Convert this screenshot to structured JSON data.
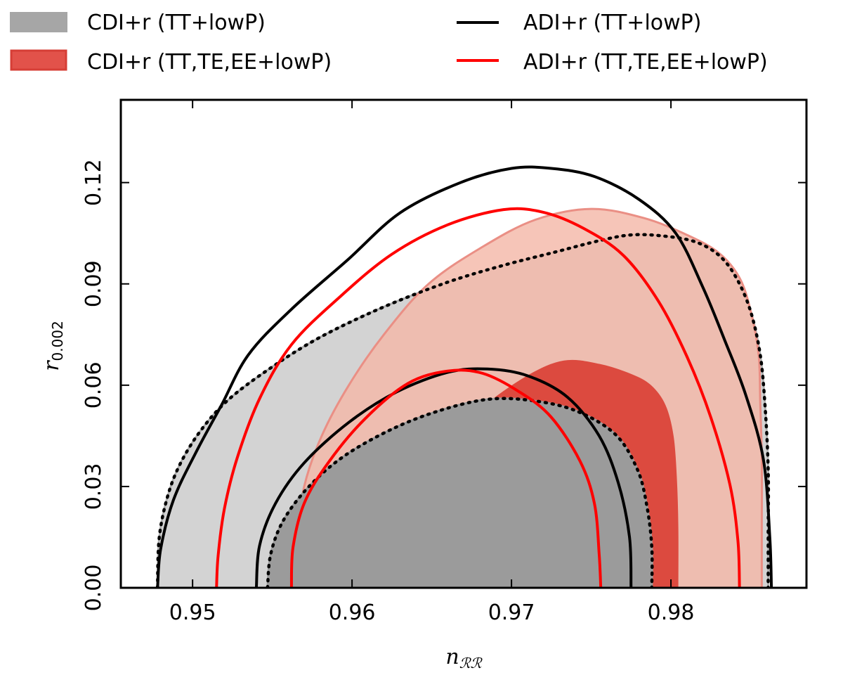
{
  "chart_data": {
    "type": "contour",
    "title": "",
    "xlabel": "n",
    "xlabel_sub": "ℛℛ",
    "ylabel": "r",
    "ylabel_sub": "0.002",
    "xlim": [
      0.9455,
      0.9885
    ],
    "ylim": [
      0.0,
      0.1445
    ],
    "xticks": [
      0.95,
      0.96,
      0.97,
      0.98
    ],
    "xtick_labels": [
      "0.95",
      "0.96",
      "0.97",
      "0.98"
    ],
    "yticks": [
      0.0,
      0.03,
      0.06,
      0.09,
      0.12
    ],
    "ytick_labels": [
      "0.00",
      "0.03",
      "0.06",
      "0.09",
      "0.12"
    ],
    "legend_position": "top, above plot",
    "legend": [
      {
        "label": "CDI+r (TT+lowP)",
        "kind": "patch",
        "color": "#a6a6a6",
        "edge": "#a6a6a6"
      },
      {
        "label": "CDI+r (TT,TE,EE+lowP)",
        "kind": "patch",
        "color": "#e2524a",
        "edge": "#d63e36"
      },
      {
        "label": "ADI+r (TT+lowP)",
        "kind": "line",
        "color": "#000000"
      },
      {
        "label": "ADI+r (TT,TE,EE+lowP)",
        "kind": "line",
        "color": "#ff0000"
      }
    ],
    "series": [
      {
        "name": "CDI+r (TT+lowP) 95%",
        "style": "fill",
        "color": "#d3d3d3",
        "edge": "#b0b0b0",
        "outline": "dotted-black",
        "points": [
          [
            0.9478,
            0.0
          ],
          [
            0.9479,
            0.0145
          ],
          [
            0.9484,
            0.0265
          ],
          [
            0.9492,
            0.0365
          ],
          [
            0.9505,
            0.0465
          ],
          [
            0.9522,
            0.0555
          ],
          [
            0.9548,
            0.0648
          ],
          [
            0.958,
            0.0742
          ],
          [
            0.962,
            0.0832
          ],
          [
            0.966,
            0.0905
          ],
          [
            0.9695,
            0.0955
          ],
          [
            0.9728,
            0.0995
          ],
          [
            0.9755,
            0.1028
          ],
          [
            0.9775,
            0.1045
          ],
          [
            0.9795,
            0.1042
          ],
          [
            0.9815,
            0.1025
          ],
          [
            0.983,
            0.0985
          ],
          [
            0.9841,
            0.0918
          ],
          [
            0.985,
            0.0818
          ],
          [
            0.9856,
            0.069
          ],
          [
            0.9859,
            0.054
          ],
          [
            0.9861,
            0.035
          ],
          [
            0.9861,
            0.0155
          ],
          [
            0.9861,
            0.0
          ]
        ]
      },
      {
        "name": "CDI+r (TT,TE,EE+lowP) 95%",
        "style": "fill",
        "color": "#f4b8a8",
        "edge": "#ea8f85",
        "opacity": 0.82,
        "points": [
          [
            0.9565,
            0.0
          ],
          [
            0.9566,
            0.015
          ],
          [
            0.957,
            0.03
          ],
          [
            0.9581,
            0.045
          ],
          [
            0.9598,
            0.06
          ],
          [
            0.962,
            0.075
          ],
          [
            0.9648,
            0.09
          ],
          [
            0.9682,
            0.101
          ],
          [
            0.9715,
            0.109
          ],
          [
            0.975,
            0.1122
          ],
          [
            0.9783,
            0.1095
          ],
          [
            0.981,
            0.1045
          ],
          [
            0.983,
            0.0992
          ],
          [
            0.9843,
            0.0918
          ],
          [
            0.985,
            0.082
          ],
          [
            0.9855,
            0.069
          ],
          [
            0.9856,
            0.055
          ],
          [
            0.9857,
            0.038
          ],
          [
            0.9857,
            0.018
          ],
          [
            0.9857,
            0.0
          ]
        ]
      },
      {
        "name": "CDI+r (TT,TE,EE+lowP) 68%",
        "style": "fill",
        "color": "#dc4a3f",
        "edge": "#dc4a3f",
        "points": [
          [
            0.9623,
            0.0
          ],
          [
            0.9623,
            0.012
          ],
          [
            0.9626,
            0.022
          ],
          [
            0.9637,
            0.032
          ],
          [
            0.9655,
            0.041
          ],
          [
            0.968,
            0.0525
          ],
          [
            0.971,
            0.0625
          ],
          [
            0.9733,
            0.067
          ],
          [
            0.9755,
            0.066
          ],
          [
            0.9775,
            0.063
          ],
          [
            0.9787,
            0.0598
          ],
          [
            0.9796,
            0.054
          ],
          [
            0.9801,
            0.045
          ],
          [
            0.9803,
            0.033
          ],
          [
            0.9804,
            0.018
          ],
          [
            0.9804,
            0.0
          ]
        ]
      },
      {
        "name": "CDI+r (TT+lowP) 68%",
        "style": "fill",
        "color": "#9b9b9b",
        "edge": "#9b9b9b",
        "outline": "dotted-black",
        "points": [
          [
            0.9547,
            0.0
          ],
          [
            0.9549,
            0.01
          ],
          [
            0.9557,
            0.02
          ],
          [
            0.9573,
            0.03
          ],
          [
            0.9595,
            0.039
          ],
          [
            0.9625,
            0.047
          ],
          [
            0.9655,
            0.0525
          ],
          [
            0.9685,
            0.0558
          ],
          [
            0.9712,
            0.0555
          ],
          [
            0.974,
            0.0525
          ],
          [
            0.9765,
            0.0455
          ],
          [
            0.9779,
            0.035
          ],
          [
            0.9785,
            0.024
          ],
          [
            0.9788,
            0.012
          ],
          [
            0.9788,
            0.0
          ]
        ]
      },
      {
        "name": "ADI+r (TT+lowP) 95%",
        "style": "line",
        "color": "#000000",
        "points": [
          [
            0.9478,
            0.0
          ],
          [
            0.948,
            0.0115
          ],
          [
            0.9488,
            0.026
          ],
          [
            0.9502,
            0.04
          ],
          [
            0.9518,
            0.054
          ],
          [
            0.9535,
            0.069
          ],
          [
            0.9562,
            0.0825
          ],
          [
            0.9597,
            0.097
          ],
          [
            0.963,
            0.111
          ],
          [
            0.9668,
            0.12
          ],
          [
            0.97,
            0.1242
          ],
          [
            0.9725,
            0.1242
          ],
          [
            0.9752,
            0.1218
          ],
          [
            0.978,
            0.115
          ],
          [
            0.9803,
            0.105
          ],
          [
            0.982,
            0.089
          ],
          [
            0.9834,
            0.073
          ],
          [
            0.9847,
            0.057
          ],
          [
            0.9858,
            0.038
          ],
          [
            0.9862,
            0.015
          ],
          [
            0.9863,
            0.0
          ]
        ]
      },
      {
        "name": "ADI+r (TT+lowP) 68%",
        "style": "line",
        "color": "#000000",
        "points": [
          [
            0.954,
            0.0
          ],
          [
            0.9542,
            0.0125
          ],
          [
            0.9552,
            0.025
          ],
          [
            0.957,
            0.037
          ],
          [
            0.9598,
            0.049
          ],
          [
            0.9628,
            0.058
          ],
          [
            0.966,
            0.0638
          ],
          [
            0.9685,
            0.0648
          ],
          [
            0.971,
            0.0628
          ],
          [
            0.9735,
            0.0565
          ],
          [
            0.9755,
            0.045
          ],
          [
            0.9767,
            0.031
          ],
          [
            0.9774,
            0.015
          ],
          [
            0.9775,
            0.0
          ]
        ]
      },
      {
        "name": "ADI+r (TT,TE,EE+lowP) 95%",
        "style": "line",
        "color": "#ff0000",
        "points": [
          [
            0.9515,
            0.0
          ],
          [
            0.9516,
            0.0095
          ],
          [
            0.952,
            0.0235
          ],
          [
            0.9528,
            0.0385
          ],
          [
            0.9542,
            0.056
          ],
          [
            0.9562,
            0.072
          ],
          [
            0.9592,
            0.086
          ],
          [
            0.9625,
            0.0988
          ],
          [
            0.966,
            0.1075
          ],
          [
            0.9695,
            0.112
          ],
          [
            0.972,
            0.1112
          ],
          [
            0.9745,
            0.1065
          ],
          [
            0.977,
            0.0985
          ],
          [
            0.9792,
            0.085
          ],
          [
            0.981,
            0.0685
          ],
          [
            0.9825,
            0.0505
          ],
          [
            0.9837,
            0.0305
          ],
          [
            0.9842,
            0.014
          ],
          [
            0.9843,
            0.0
          ]
        ]
      },
      {
        "name": "ADI+r (TT,TE,EE+lowP) 68%",
        "style": "line",
        "color": "#ff0000",
        "points": [
          [
            0.9562,
            0.0
          ],
          [
            0.9563,
            0.012
          ],
          [
            0.957,
            0.025
          ],
          [
            0.9585,
            0.037
          ],
          [
            0.9608,
            0.05
          ],
          [
            0.9635,
            0.0605
          ],
          [
            0.966,
            0.0642
          ],
          [
            0.9682,
            0.0635
          ],
          [
            0.9705,
            0.058
          ],
          [
            0.9725,
            0.0505
          ],
          [
            0.9743,
            0.0375
          ],
          [
            0.9752,
            0.025
          ],
          [
            0.9755,
            0.01
          ],
          [
            0.9756,
            0.0
          ]
        ]
      }
    ]
  }
}
